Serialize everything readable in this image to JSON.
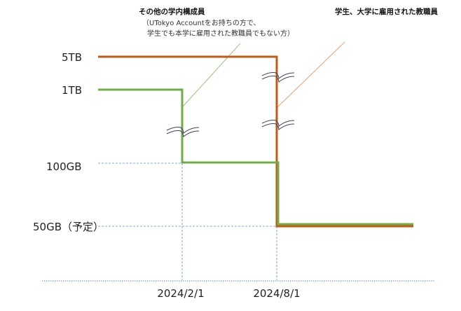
{
  "labels": {
    "others_title": "その他の学内構成員",
    "others_note_1": "（UTokyo Accountをお持ちの方で、",
    "others_note_2": "学生でも本学に雇用された教職員でもない方）",
    "students_staff_title": "学生、大学に雇用された教職員"
  },
  "y_labels": [
    "5TB",
    "1TB",
    "100GB",
    "50GB（予定）"
  ],
  "x_labels": [
    "2024/2/1",
    "2024/8/1"
  ],
  "series": [
    {
      "name": "学生、大学に雇用された教職員",
      "color": "#c55a11",
      "steps": [
        {
          "from": "start",
          "value": "5TB"
        },
        {
          "from": "2024/8/1",
          "value": "50GB（予定）"
        }
      ]
    },
    {
      "name": "その他の学内構成員",
      "color": "#70ad47",
      "steps": [
        {
          "from": "start",
          "value": "1TB"
        },
        {
          "from": "2024/2/1",
          "value": "100GB"
        },
        {
          "from": "2024/8/1",
          "value": "50GB（予定）"
        }
      ]
    }
  ],
  "colors": {
    "guide": "#5b8fc7",
    "orange": "#c55a11",
    "green": "#70ad47",
    "break_mark": "#404060"
  }
}
